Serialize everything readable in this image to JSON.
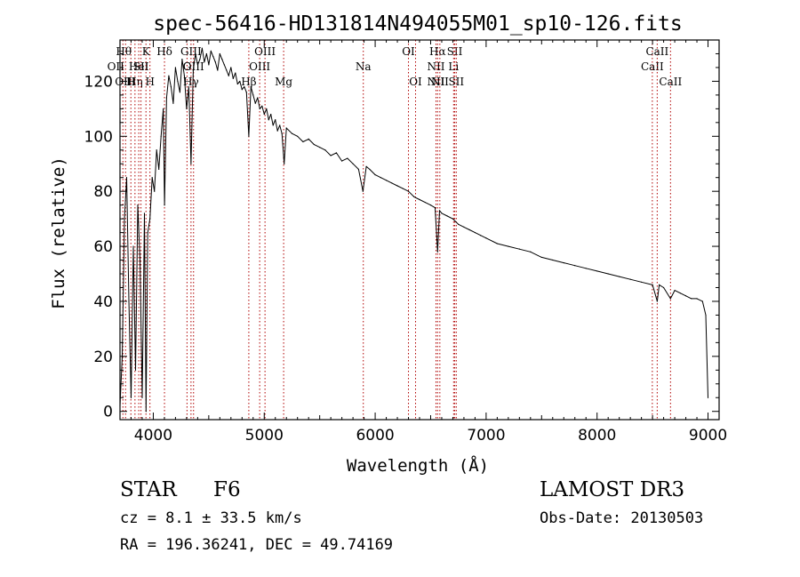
{
  "chart_data": {
    "type": "line",
    "title": "spec-56416-HD131814N494055M01_sp10-126.fits",
    "xlabel": "Wavelength (Å)",
    "ylabel": "Flux (relative)",
    "xlim": [
      3700,
      9100
    ],
    "ylim": [
      -3,
      135
    ],
    "x_ticks": [
      4000,
      5000,
      6000,
      7000,
      8000,
      9000
    ],
    "y_ticks": [
      0,
      20,
      40,
      60,
      80,
      100,
      120
    ],
    "grid": false,
    "line_color": "#000000",
    "marker_color": "#b00000",
    "series": [
      {
        "x": [
          3700,
          3720,
          3740,
          3760,
          3780,
          3800,
          3820,
          3840,
          3860,
          3880,
          3900,
          3920,
          3935,
          3950,
          3970,
          3990,
          4010,
          4030,
          4050,
          4070,
          4090,
          4101,
          4120,
          4140,
          4160,
          4180,
          4200,
          4220,
          4240,
          4260,
          4280,
          4300,
          4320,
          4340,
          4360,
          4380,
          4400,
          4420,
          4440,
          4460,
          4480,
          4500,
          4520,
          4540,
          4560,
          4580,
          4600,
          4620,
          4640,
          4660,
          4680,
          4700,
          4720,
          4740,
          4760,
          4780,
          4800,
          4820,
          4840,
          4861,
          4880,
          4900,
          4920,
          4940,
          4960,
          4980,
          5000,
          5020,
          5040,
          5060,
          5080,
          5100,
          5120,
          5140,
          5160,
          5180,
          5200,
          5250,
          5300,
          5350,
          5400,
          5450,
          5500,
          5550,
          5600,
          5650,
          5700,
          5750,
          5800,
          5850,
          5890,
          5920,
          5950,
          6000,
          6050,
          6100,
          6150,
          6200,
          6250,
          6300,
          6350,
          6400,
          6450,
          6500,
          6540,
          6563,
          6580,
          6600,
          6650,
          6700,
          6750,
          6800,
          6850,
          6900,
          6950,
          7000,
          7100,
          7200,
          7300,
          7400,
          7500,
          7600,
          7700,
          7800,
          7900,
          8000,
          8100,
          8200,
          8300,
          8400,
          8500,
          8542,
          8560,
          8600,
          8662,
          8700,
          8750,
          8800,
          8850,
          8900,
          8950,
          8980,
          9000
        ],
        "y": [
          2,
          20,
          70,
          85,
          40,
          5,
          60,
          15,
          75,
          55,
          5,
          72,
          0,
          65,
          70,
          85,
          80,
          95,
          88,
          100,
          110,
          75,
          114,
          122,
          118,
          112,
          125,
          120,
          116,
          128,
          122,
          110,
          118,
          90,
          124,
          130,
          126,
          128,
          132,
          127,
          130,
          126,
          131,
          129,
          127,
          124,
          130,
          128,
          126,
          124,
          122,
          125,
          121,
          123,
          119,
          120,
          117,
          118,
          116,
          100,
          118,
          115,
          112,
          114,
          110,
          111,
          108,
          110,
          106,
          108,
          104,
          106,
          102,
          104,
          101,
          90,
          103,
          101,
          100,
          98,
          99,
          97,
          96,
          95,
          93,
          94,
          91,
          92,
          90,
          88,
          80,
          89,
          88,
          86,
          85,
          84,
          83,
          82,
          81,
          80,
          78,
          77,
          76,
          75,
          74,
          58,
          73,
          72,
          71,
          70,
          68,
          67,
          66,
          65,
          64,
          63,
          61,
          60,
          59,
          58,
          56,
          55,
          54,
          53,
          52,
          51,
          50,
          49,
          48,
          47,
          46,
          40,
          46,
          45,
          41,
          44,
          43,
          42,
          41,
          41,
          40,
          35,
          5
        ]
      }
    ],
    "line_markers": [
      {
        "wavelength": 3726,
        "labels": [
          "OII"
        ],
        "rows": [
          2
        ],
        "offsets": [
          -1
        ]
      },
      {
        "wavelength": 3750,
        "labels": [
          "OIII"
        ],
        "rows": [
          3
        ],
        "offsets": [
          0
        ]
      },
      {
        "wavelength": 3798,
        "labels": [
          "Hθ",
          "H"
        ],
        "rows": [
          1,
          3
        ],
        "offsets": [
          -1,
          0
        ]
      },
      {
        "wavelength": 3835,
        "labels": [
          "Hη"
        ],
        "rows": [
          3
        ],
        "offsets": [
          0
        ]
      },
      {
        "wavelength": 3869,
        "labels": [
          "HeI"
        ],
        "rows": [
          2
        ],
        "offsets": [
          0
        ]
      },
      {
        "wavelength": 3889,
        "labels": [
          "SII"
        ],
        "rows": [
          2
        ],
        "offsets": [
          0
        ]
      },
      {
        "wavelength": 3934,
        "labels": [
          "K"
        ],
        "rows": [
          1
        ],
        "offsets": [
          0
        ]
      },
      {
        "wavelength": 3970,
        "labels": [
          "H"
        ],
        "rows": [
          3
        ],
        "offsets": [
          0
        ]
      },
      {
        "wavelength": 4101,
        "labels": [
          "Hδ"
        ],
        "rows": [
          1
        ],
        "offsets": [
          0
        ]
      },
      {
        "wavelength": 4304,
        "labels": [
          "G"
        ],
        "rows": [
          2
        ],
        "offsets": [
          0
        ]
      },
      {
        "wavelength": 4340,
        "labels": [
          "GIII",
          "Hγ"
        ],
        "rows": [
          1,
          3
        ],
        "offsets": [
          0,
          0
        ]
      },
      {
        "wavelength": 4363,
        "labels": [
          "OIII"
        ],
        "rows": [
          2
        ],
        "offsets": [
          0
        ]
      },
      {
        "wavelength": 4861,
        "labels": [
          "Hβ"
        ],
        "rows": [
          3
        ],
        "offsets": [
          0
        ]
      },
      {
        "wavelength": 4959,
        "labels": [
          "OIII"
        ],
        "rows": [
          2
        ],
        "offsets": [
          0
        ]
      },
      {
        "wavelength": 5007,
        "labels": [
          "OIII"
        ],
        "rows": [
          1
        ],
        "offsets": [
          0
        ]
      },
      {
        "wavelength": 5175,
        "labels": [
          "Mg"
        ],
        "rows": [
          3
        ],
        "offsets": [
          0
        ]
      },
      {
        "wavelength": 5893,
        "labels": [
          "Na"
        ],
        "rows": [
          2
        ],
        "offsets": [
          0
        ]
      },
      {
        "wavelength": 6300,
        "labels": [
          "OI"
        ],
        "rows": [
          1
        ],
        "offsets": [
          0
        ]
      },
      {
        "wavelength": 6364,
        "labels": [
          "OI"
        ],
        "rows": [
          3
        ],
        "offsets": [
          0
        ]
      },
      {
        "wavelength": 6548,
        "labels": [
          "NII",
          "NII"
        ],
        "rows": [
          2,
          3
        ],
        "offsets": [
          0,
          0
        ]
      },
      {
        "wavelength": 6563,
        "labels": [
          "Hα"
        ],
        "rows": [
          1
        ],
        "offsets": [
          0
        ]
      },
      {
        "wavelength": 6583,
        "labels": [
          "NII"
        ],
        "rows": [
          3
        ],
        "offsets": [
          0
        ]
      },
      {
        "wavelength": 6707,
        "labels": [
          "Li"
        ],
        "rows": [
          2
        ],
        "offsets": [
          0
        ]
      },
      {
        "wavelength": 6717,
        "labels": [
          "SII"
        ],
        "rows": [
          1
        ],
        "offsets": [
          0
        ]
      },
      {
        "wavelength": 6731,
        "labels": [
          "SII"
        ],
        "rows": [
          3
        ],
        "offsets": [
          0
        ]
      },
      {
        "wavelength": 8498,
        "labels": [
          "CaII"
        ],
        "rows": [
          2
        ],
        "offsets": [
          0
        ]
      },
      {
        "wavelength": 8542,
        "labels": [
          "CaII"
        ],
        "rows": [
          1
        ],
        "offsets": [
          0
        ]
      },
      {
        "wavelength": 8662,
        "labels": [
          "CaII"
        ],
        "rows": [
          3
        ],
        "offsets": [
          0
        ]
      }
    ]
  },
  "info": {
    "class_label": "STAR",
    "subclass_label": "F6",
    "survey_label": "LAMOST DR3",
    "cz_text": "cz = 8.1 ± 33.5 km/s",
    "obsdate_text": "Obs-Date: 20130503",
    "radec_text": "RA = 196.36241, DEC =  49.74169"
  }
}
